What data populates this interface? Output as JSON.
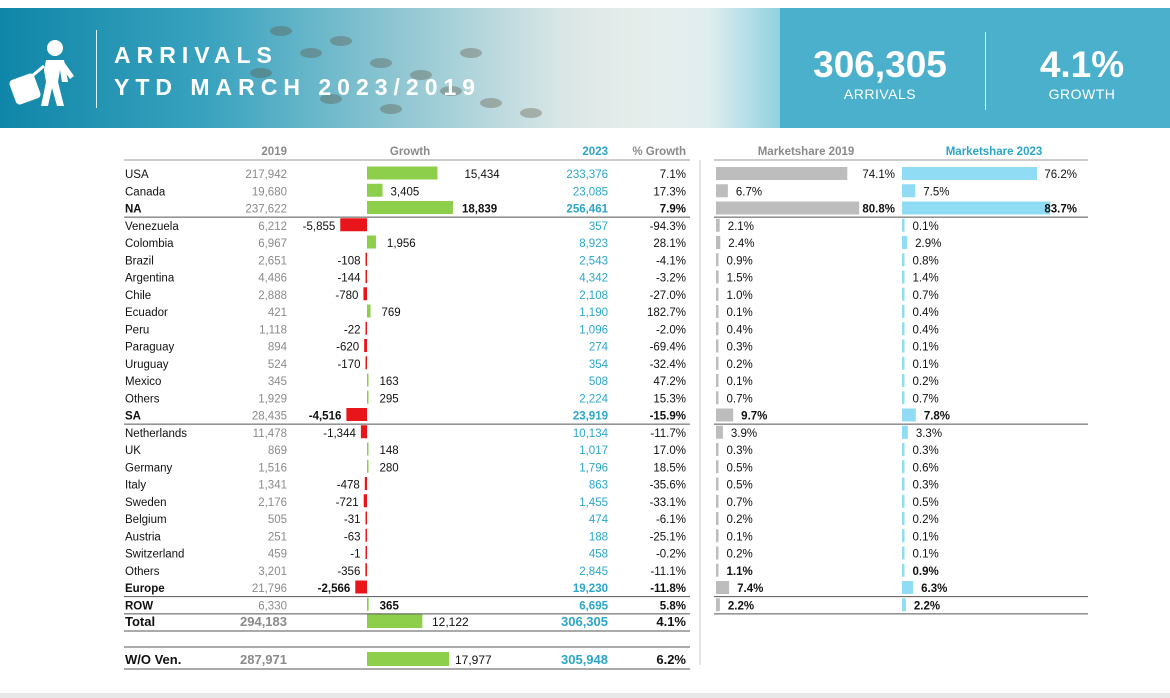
{
  "banner": {
    "title_line1": "ARRIVALS",
    "title_line2": "YTD MARCH 2023/2019",
    "arrivals_value": "306,305",
    "arrivals_label": "ARRIVALS",
    "growth_value": "4.1%",
    "growth_label": "GROWTH",
    "icon": "traveler-with-suitcase-icon"
  },
  "columns": {
    "y2019": "2019",
    "growth": "Growth",
    "y2023": "2023",
    "pct": "% Growth",
    "ms2019": "Marketshare 2019",
    "ms2023": "Marketshare 2023"
  },
  "colors": {
    "accent": "#2ba6c9",
    "bar_positive": "#8dcf4a",
    "bar_negative": "#e8161b",
    "ms2019_bar": "#bdbdbd",
    "ms2023_bar": "#8fdcf4",
    "muted": "#8a8a8a"
  },
  "chart_data": {
    "type": "table",
    "rows": [
      {
        "name": "USA",
        "v2019": "217,942",
        "growth": 15434,
        "growth_label": "15,434",
        "v2023": "233,376",
        "pct": "7.1%",
        "ms2019": 74.1,
        "ms2019_label": "74.1%",
        "ms2023": 76.2,
        "ms2023_label": "76.2%",
        "bold": false
      },
      {
        "name": "Canada",
        "v2019": "19,680",
        "growth": 3405,
        "growth_label": "3,405",
        "v2023": "23,085",
        "pct": "17.3%",
        "ms2019": 6.7,
        "ms2019_label": "6.7%",
        "ms2023": 7.5,
        "ms2023_label": "7.5%",
        "bold": false
      },
      {
        "name": "NA",
        "v2019": "237,622",
        "growth": 18839,
        "growth_label": "18,839",
        "v2023": "256,461",
        "pct": "7.9%",
        "ms2019": 80.8,
        "ms2019_label": "80.8%",
        "ms2023": 83.7,
        "ms2023_label": "83.7%",
        "bold": true
      },
      {
        "name": "Venezuela",
        "v2019": "6,212",
        "growth": -5855,
        "growth_label": "-5,855",
        "v2023": "357",
        "pct": "-94.3%",
        "ms2019": 2.1,
        "ms2019_label": "2.1%",
        "ms2023": 0.1,
        "ms2023_label": "0.1%",
        "bold": false
      },
      {
        "name": "Colombia",
        "v2019": "6,967",
        "growth": 1956,
        "growth_label": "1,956",
        "v2023": "8,923",
        "pct": "28.1%",
        "ms2019": 2.4,
        "ms2019_label": "2.4%",
        "ms2023": 2.9,
        "ms2023_label": "2.9%",
        "bold": false
      },
      {
        "name": "Brazil",
        "v2019": "2,651",
        "growth": -108,
        "growth_label": "-108",
        "v2023": "2,543",
        "pct": "-4.1%",
        "ms2019": 0.9,
        "ms2019_label": "0.9%",
        "ms2023": 0.8,
        "ms2023_label": "0.8%",
        "bold": false
      },
      {
        "name": "Argentina",
        "v2019": "4,486",
        "growth": -144,
        "growth_label": "-144",
        "v2023": "4,342",
        "pct": "-3.2%",
        "ms2019": 1.5,
        "ms2019_label": "1.5%",
        "ms2023": 1.4,
        "ms2023_label": "1.4%",
        "bold": false
      },
      {
        "name": "Chile",
        "v2019": "2,888",
        "growth": -780,
        "growth_label": "-780",
        "v2023": "2,108",
        "pct": "-27.0%",
        "ms2019": 1.0,
        "ms2019_label": "1.0%",
        "ms2023": 0.7,
        "ms2023_label": "0.7%",
        "bold": false
      },
      {
        "name": "Ecuador",
        "v2019": "421",
        "growth": 769,
        "growth_label": "769",
        "v2023": "1,190",
        "pct": "182.7%",
        "ms2019": 0.1,
        "ms2019_label": "0.1%",
        "ms2023": 0.4,
        "ms2023_label": "0.4%",
        "bold": false
      },
      {
        "name": "Peru",
        "v2019": "1,118",
        "growth": -22,
        "growth_label": "-22",
        "v2023": "1,096",
        "pct": "-2.0%",
        "ms2019": 0.4,
        "ms2019_label": "0.4%",
        "ms2023": 0.4,
        "ms2023_label": "0.4%",
        "bold": false
      },
      {
        "name": "Paraguay",
        "v2019": "894",
        "growth": -620,
        "growth_label": "-620",
        "v2023": "274",
        "pct": "-69.4%",
        "ms2019": 0.3,
        "ms2019_label": "0.3%",
        "ms2023": 0.1,
        "ms2023_label": "0.1%",
        "bold": false
      },
      {
        "name": "Uruguay",
        "v2019": "524",
        "growth": -170,
        "growth_label": "-170",
        "v2023": "354",
        "pct": "-32.4%",
        "ms2019": 0.2,
        "ms2019_label": "0.2%",
        "ms2023": 0.1,
        "ms2023_label": "0.1%",
        "bold": false
      },
      {
        "name": "Mexico",
        "v2019": "345",
        "growth": 163,
        "growth_label": "163",
        "v2023": "508",
        "pct": "47.2%",
        "ms2019": 0.1,
        "ms2019_label": "0.1%",
        "ms2023": 0.2,
        "ms2023_label": "0.2%",
        "bold": false
      },
      {
        "name": "Others",
        "v2019": "1,929",
        "growth": 295,
        "growth_label": "295",
        "v2023": "2,224",
        "pct": "15.3%",
        "ms2019": 0.7,
        "ms2019_label": "0.7%",
        "ms2023": 0.7,
        "ms2023_label": "0.7%",
        "bold": false
      },
      {
        "name": "SA",
        "v2019": "28,435",
        "growth": -4516,
        "growth_label": "-4,516",
        "v2023": "23,919",
        "pct": "-15.9%",
        "ms2019": 9.7,
        "ms2019_label": "9.7%",
        "ms2023": 7.8,
        "ms2023_label": "7.8%",
        "bold": true
      },
      {
        "name": "Netherlands",
        "v2019": "11,478",
        "growth": -1344,
        "growth_label": "-1,344",
        "v2023": "10,134",
        "pct": "-11.7%",
        "ms2019": 3.9,
        "ms2019_label": "3.9%",
        "ms2023": 3.3,
        "ms2023_label": "3.3%",
        "bold": false
      },
      {
        "name": "UK",
        "v2019": "869",
        "growth": 148,
        "growth_label": "148",
        "v2023": "1,017",
        "pct": "17.0%",
        "ms2019": 0.3,
        "ms2019_label": "0.3%",
        "ms2023": 0.3,
        "ms2023_label": "0.3%",
        "bold": false
      },
      {
        "name": "Germany",
        "v2019": "1,516",
        "growth": 280,
        "growth_label": "280",
        "v2023": "1,796",
        "pct": "18.5%",
        "ms2019": 0.5,
        "ms2019_label": "0.5%",
        "ms2023": 0.6,
        "ms2023_label": "0.6%",
        "bold": false
      },
      {
        "name": "Italy",
        "v2019": "1,341",
        "growth": -478,
        "growth_label": "-478",
        "v2023": "863",
        "pct": "-35.6%",
        "ms2019": 0.5,
        "ms2019_label": "0.5%",
        "ms2023": 0.3,
        "ms2023_label": "0.3%",
        "bold": false
      },
      {
        "name": "Sweden",
        "v2019": "2,176",
        "growth": -721,
        "growth_label": "-721",
        "v2023": "1,455",
        "pct": "-33.1%",
        "ms2019": 0.7,
        "ms2019_label": "0.7%",
        "ms2023": 0.5,
        "ms2023_label": "0.5%",
        "bold": false
      },
      {
        "name": "Belgium",
        "v2019": "505",
        "growth": -31,
        "growth_label": "-31",
        "v2023": "474",
        "pct": "-6.1%",
        "ms2019": 0.2,
        "ms2019_label": "0.2%",
        "ms2023": 0.2,
        "ms2023_label": "0.2%",
        "bold": false
      },
      {
        "name": "Austria",
        "v2019": "251",
        "growth": -63,
        "growth_label": "-63",
        "v2023": "188",
        "pct": "-25.1%",
        "ms2019": 0.1,
        "ms2019_label": "0.1%",
        "ms2023": 0.1,
        "ms2023_label": "0.1%",
        "bold": false
      },
      {
        "name": "Switzerland",
        "v2019": "459",
        "growth": -1,
        "growth_label": "-1",
        "v2023": "458",
        "pct": "-0.2%",
        "ms2019": 0.2,
        "ms2019_label": "0.2%",
        "ms2023": 0.1,
        "ms2023_label": "0.1%",
        "bold": false
      },
      {
        "name": "Others",
        "v2019": "3,201",
        "growth": -356,
        "growth_label": "-356",
        "v2023": "2,845",
        "pct": "-11.1%",
        "ms2019": 1.1,
        "ms2019_label": "1.1%",
        "ms2023": 0.9,
        "ms2023_label": "0.9%",
        "bold": false,
        "ms_bold": true
      },
      {
        "name": "Europe",
        "v2019": "21,796",
        "growth": -2566,
        "growth_label": "-2,566",
        "v2023": "19,230",
        "pct": "-11.8%",
        "ms2019": 7.4,
        "ms2019_label": "7.4%",
        "ms2023": 6.3,
        "ms2023_label": "6.3%",
        "bold": true
      },
      {
        "name": "ROW",
        "v2019": "6,330",
        "growth": 365,
        "growth_label": "365",
        "v2023": "6,695",
        "pct": "5.8%",
        "ms2019": 2.2,
        "ms2019_label": "2.2%",
        "ms2023": 2.2,
        "ms2023_label": "2.2%",
        "bold": true
      },
      {
        "name": "Total",
        "v2019": "294,183",
        "growth": 12122,
        "growth_label": "12,122",
        "v2023": "306,305",
        "pct": "4.1%",
        "bold": true,
        "total": true
      },
      {
        "name": "W/O Ven.",
        "v2019": "287,971",
        "growth": 17977,
        "growth_label": "17,977",
        "v2023": "305,948",
        "pct": "6.2%",
        "bold": true,
        "total": true
      }
    ]
  }
}
